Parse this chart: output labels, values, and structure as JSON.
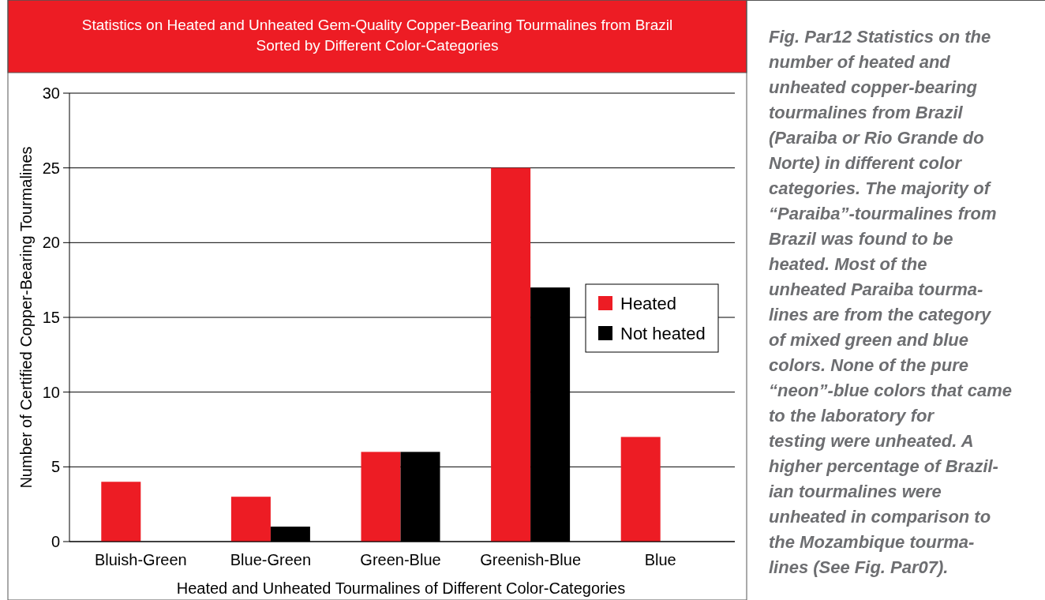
{
  "chart_data": {
    "type": "bar",
    "title": "Statistics on Heated and Unheated Gem-Quality Copper-Bearing Tourmalines from Brazil\nSorted by Different Color-Categories",
    "xlabel": "Heated and Unheated Tourmalines of Different Color-Categories",
    "ylabel": "Number of Certified Copper-Bearing Tourmalines",
    "categories": [
      "Bluish-Green",
      "Blue-Green",
      "Green-Blue",
      "Greenish-Blue",
      "Blue"
    ],
    "series": [
      {
        "name": "Heated",
        "color": "#ed1c24",
        "values": [
          4,
          3,
          6,
          25,
          7
        ]
      },
      {
        "name": "Not heated",
        "color": "#000000",
        "values": [
          0,
          1,
          6,
          17,
          0
        ]
      }
    ],
    "ylim": [
      0,
      30
    ],
    "yticks": [
      0,
      5,
      10,
      15,
      20,
      25,
      30
    ],
    "grid": "y",
    "legend": "right",
    "annotations": [
      "Fig. Par12 Statistics on the\nnumber of heated and\nunheated copper-bearing\ntourmalines from Brazil\n(Paraiba or Rio Grande do\nNorte) in different color\ncategories. The majority of\n“Paraiba”-tourmalines from\nBrazil was found to be\nheated. Most of the\nunheated Paraiba tourma-\nlines are from the category\nof mixed green and blue\ncolors. None of the pure\n“neon”-blue colors that came\nto the laboratory for\ntesting were unheated. A\nhigher percentage of Brazil-\nian tourmalines were\nunheated in comparison to\nthe Mozambique tourma-\nlines (See Fig. Par07)."
    ]
  }
}
